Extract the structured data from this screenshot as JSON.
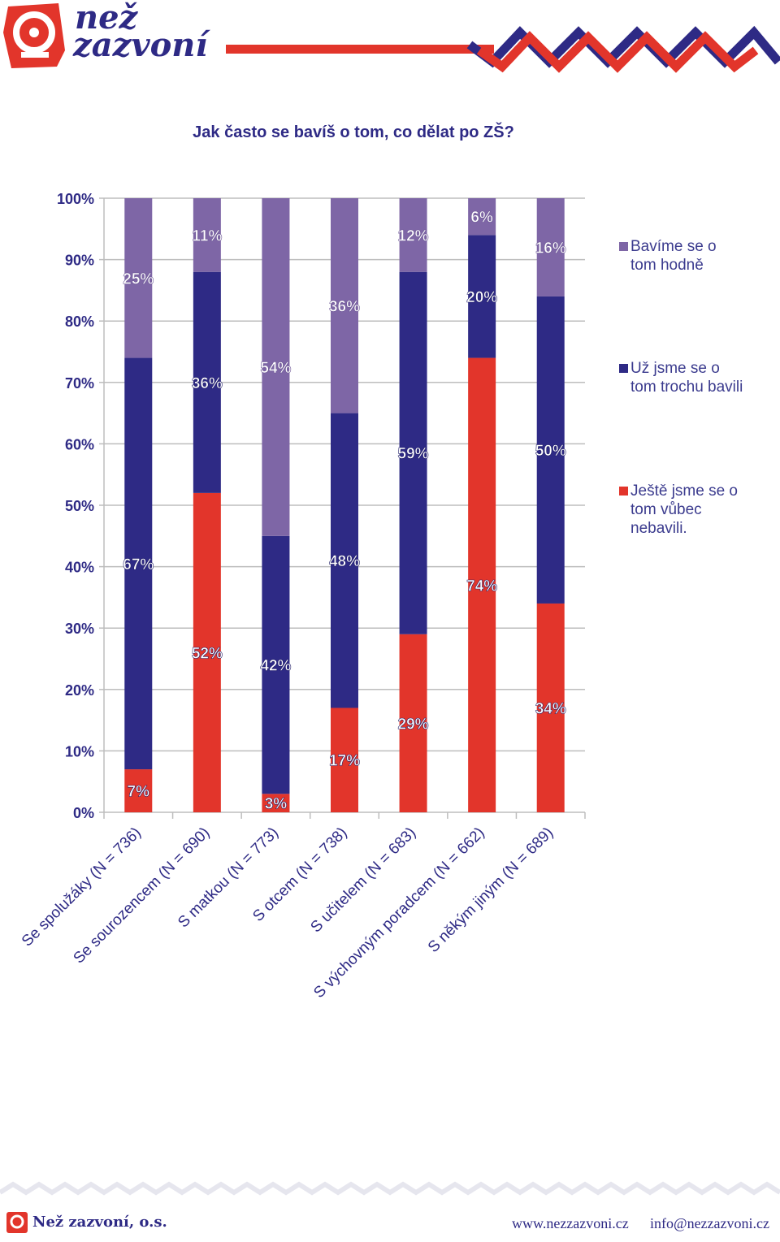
{
  "brand": {
    "name_line1": "než",
    "name_line2": "zazvoní"
  },
  "footer": {
    "org": "Než zazvoní, o.s.",
    "web": "www.nezzazvoni.cz",
    "email": "info@nezzazvoni.cz"
  },
  "colors": {
    "red": "#e2352b",
    "navy": "#2e2a85",
    "purple": "#7e66a6",
    "grid": "#bdbdbd"
  },
  "chart_data": {
    "type": "bar",
    "stacked": true,
    "title": "Jak často se bavíš o tom, co dělat po ZŠ?",
    "categories": [
      "Se spolužáky (N = 736)",
      "Se sourozencem (N = 690)",
      "S matkou (N = 773)",
      "S otcem (N = 738)",
      "S učitelem (N = 683)",
      "S výchovným poradcem (N = 662)",
      "S někým jiným (N = 689)"
    ],
    "series": [
      {
        "name": "Ještě jsme se o tom vůbec nebavili.",
        "color": "#e2352b",
        "values": [
          7,
          52,
          3,
          17,
          29,
          74,
          34
        ]
      },
      {
        "name": "Už jsme se o tom trochu bavili",
        "color": "#2e2a85",
        "values": [
          67,
          36,
          42,
          48,
          59,
          20,
          50
        ]
      },
      {
        "name": "Bavíme se o tom hodně",
        "color": "#7e66a6",
        "values": [
          25,
          11,
          54,
          36,
          12,
          6,
          16
        ]
      }
    ],
    "y_ticks": [
      "0%",
      "10%",
      "20%",
      "30%",
      "40%",
      "50%",
      "60%",
      "70%",
      "80%",
      "90%",
      "100%"
    ],
    "ylim": [
      0,
      100
    ],
    "grid": true,
    "legend": "right",
    "legend_lines": {
      "series_2": [
        "Bavíme se o",
        "tom hodně"
      ],
      "series_1": [
        "Už jsme se o",
        "tom trochu bavili"
      ],
      "series_0": [
        "Ještě jsme se o",
        "tom vůbec",
        "nebavili."
      ]
    }
  }
}
